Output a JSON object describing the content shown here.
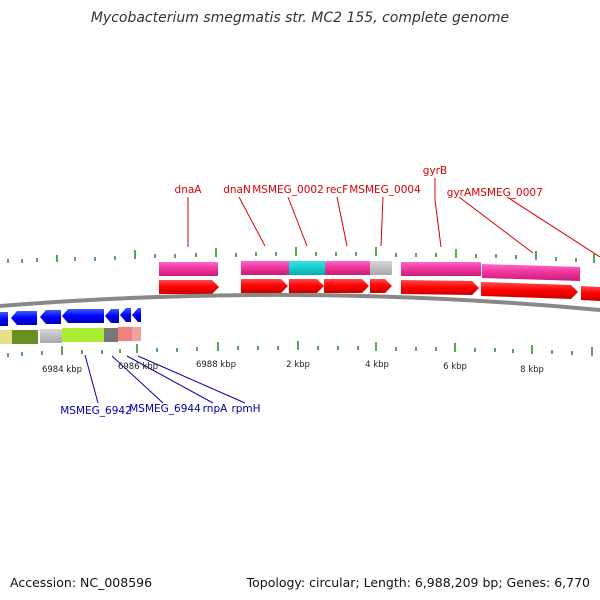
{
  "title": "Mycobacterium smegmatis str. MC2 155, complete genome",
  "accession": "Accession: NC_008596",
  "summary": "Topology: circular; Length: 6,988,209 bp; Genes: 6,770",
  "colors": {
    "forward_label": "#dd0000",
    "reverse_label": "#0000aa",
    "backbone": "#888888",
    "tick": "#228822",
    "cds_forward": "#ff0000",
    "cds_reverse": "#0000ff",
    "cog_magenta": "#ee3399",
    "cog_cyan": "#00cccc",
    "cog_gray": "#bbbbbb"
  },
  "scale_labels": [
    "6984 kbp",
    "6986 kbp",
    "6988 kbp",
    "2 kbp",
    "4 kbp",
    "6 kbp",
    "8 kbp"
  ],
  "forward_genes": [
    "dnaA",
    "dnaN",
    "MSMEG_0002",
    "recF",
    "MSMEG_0004",
    "gyrB",
    "gyrA",
    "MSMEG_0007"
  ],
  "reverse_genes": [
    "MSMEG_6942",
    "MSMEG_6944",
    "rnpA",
    "rpmH"
  ]
}
